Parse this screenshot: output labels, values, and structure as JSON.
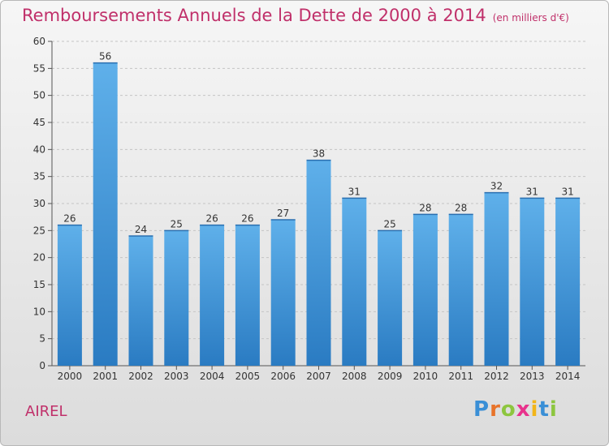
{
  "chart_data": {
    "type": "bar",
    "title": "Remboursements Annuels de la Dette de 2000 à 2014",
    "subtitle": "(en milliers d'€)",
    "categories": [
      "2000",
      "2001",
      "2002",
      "2003",
      "2004",
      "2005",
      "2006",
      "2007",
      "2008",
      "2009",
      "2010",
      "2011",
      "2012",
      "2013",
      "2014"
    ],
    "values": [
      26,
      56,
      24,
      25,
      26,
      26,
      27,
      38,
      31,
      25,
      28,
      28,
      32,
      31,
      31
    ],
    "value_labels": [
      "26",
      "56",
      "24",
      "25",
      "26",
      "26",
      "27",
      "38",
      "31",
      "25",
      "28",
      "28",
      "32",
      "31",
      "31"
    ],
    "ylim": [
      0,
      60
    ],
    "yticks": [
      "0",
      "5",
      "10",
      "15",
      "20",
      "25",
      "30",
      "35",
      "40",
      "45",
      "50",
      "55",
      "60"
    ],
    "grid": true,
    "bar_color_top": "#5fb0ea",
    "bar_color_bottom": "#2a7bc2"
  },
  "footer": {
    "commune": "AIREL",
    "logo_letters": [
      "P",
      "r",
      "o",
      "x",
      "i",
      "t",
      "i"
    ],
    "logo_colors": [
      "#3a8fd6",
      "#e8732a",
      "#8dc63f",
      "#e8328c",
      "#f2b519",
      "#3a8fd6",
      "#8dc63f"
    ]
  }
}
